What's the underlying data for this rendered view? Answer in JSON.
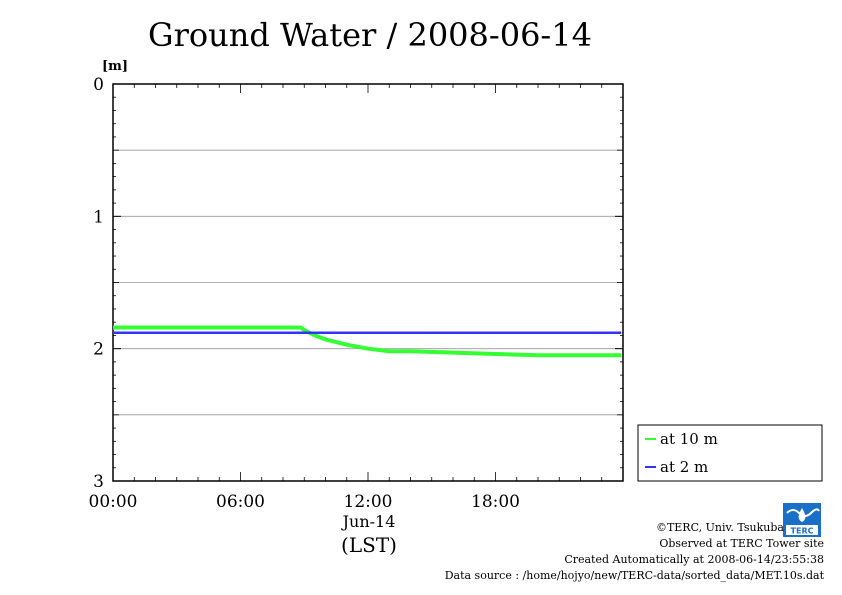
{
  "chart_data": {
    "type": "line",
    "title": "Ground Water / 2008-06-14",
    "ylabel": "[m]",
    "xlabel": "(LST)",
    "x_date_label": "Jun-14",
    "y_inverted": true,
    "ylim": [
      0,
      3
    ],
    "yticks": [
      0,
      1,
      2,
      3
    ],
    "xlim": [
      "00:00",
      "24:00"
    ],
    "xticks": [
      "00:00",
      "06:00",
      "12:00",
      "18:00"
    ],
    "grid": "horizontal",
    "legend_position": "right",
    "series": [
      {
        "name": "at 10 m",
        "color": "#33ff33",
        "x": [
          "00:00",
          "02:00",
          "04:00",
          "06:00",
          "08:00",
          "08:50",
          "09:00",
          "09:30",
          "10:00",
          "11:00",
          "12:00",
          "13:00",
          "14:00",
          "16:00",
          "18:00",
          "20:00",
          "22:00",
          "23:55"
        ],
        "y": [
          1.84,
          1.84,
          1.84,
          1.84,
          1.84,
          1.84,
          1.86,
          1.9,
          1.93,
          1.97,
          2.0,
          2.02,
          2.02,
          2.03,
          2.04,
          2.05,
          2.05,
          2.05
        ]
      },
      {
        "name": "at 2 m",
        "color": "#3333ff",
        "x": [
          "00:00",
          "06:00",
          "12:00",
          "18:00",
          "23:55"
        ],
        "y": [
          1.88,
          1.88,
          1.88,
          1.88,
          1.88
        ]
      }
    ]
  },
  "credits": {
    "copyright": "©TERC, Univ. Tsukuba",
    "observed": "Observed at TERC Tower site",
    "created": "Created Automatically at 2008-06-14/23:55:38",
    "source": "Data source : /home/hojyo/new/TERC-data/sorted_data/MET.10s.dat"
  },
  "logo_text": "TERC"
}
